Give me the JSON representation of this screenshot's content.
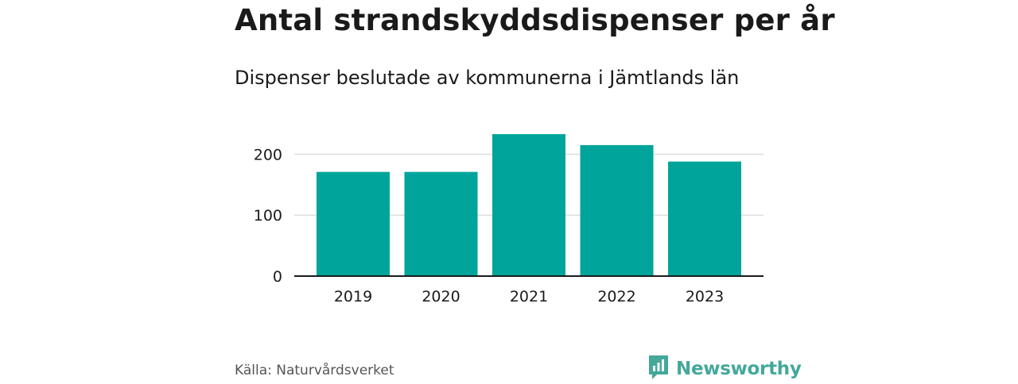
{
  "header": {
    "title": "Antal strandskyddsdispenser per år",
    "subtitle": "Dispenser beslutade av kommunerna i Jämtlands län"
  },
  "footer": {
    "source": "Källa: Naturvårdsverket",
    "brand": "Newsworthy"
  },
  "colors": {
    "bar": "#00a49a",
    "brand": "#44a89b",
    "grid": "#dcdcdc",
    "axis": "#1a1a1a"
  },
  "chart_data": {
    "type": "bar",
    "title": "Antal strandskyddsdispenser per år",
    "subtitle": "Dispenser beslutade av kommunerna i Jämtlands län",
    "categories": [
      "2019",
      "2020",
      "2021",
      "2022",
      "2023"
    ],
    "values": [
      171,
      171,
      233,
      215,
      188
    ],
    "xlabel": "",
    "ylabel": "",
    "ylim": [
      0,
      250
    ],
    "yticks": [
      0,
      100,
      200
    ],
    "grid": true,
    "legend": "none"
  }
}
